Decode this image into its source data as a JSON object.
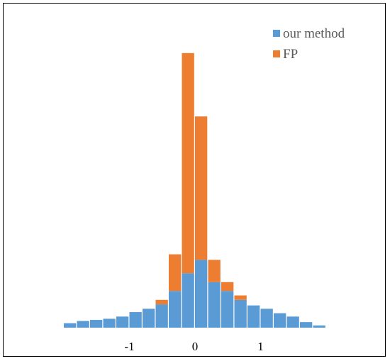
{
  "chart_data": {
    "type": "bar",
    "stacked": true,
    "categories": [
      "-1.9",
      "-1.7",
      "-1.5",
      "-1.3",
      "-1.1",
      "-0.9",
      "-0.7",
      "-0.5",
      "-0.3",
      "-0.1",
      "0.1",
      "0.3",
      "0.5",
      "0.7",
      "0.9",
      "1.1",
      "1.3",
      "1.5",
      "1.7",
      "1.9"
    ],
    "series": [
      {
        "name": "our method",
        "color": "#5B9BD5",
        "values": [
          2.0,
          3.0,
          3.5,
          4.0,
          5.0,
          7.0,
          8.5,
          10.5,
          16.5,
          24.5,
          30.5,
          20.5,
          16.5,
          12.5,
          10.0,
          8.5,
          6.5,
          5.0,
          2.5,
          1.0
        ]
      },
      {
        "name": "FP",
        "color": "#ED7D31",
        "values": [
          0,
          0,
          0,
          0,
          0,
          0,
          0,
          2.0,
          16.5,
          99.0,
          64.5,
          10.0,
          4.0,
          2.0,
          0,
          0,
          0,
          0,
          0,
          0
        ]
      }
    ],
    "x_ticks": [
      {
        "value": -1,
        "label": "-1"
      },
      {
        "value": 0,
        "label": "0"
      },
      {
        "value": 1,
        "label": "1"
      }
    ],
    "xlim": [
      -2,
      2
    ],
    "ylim": [
      0,
      126
    ],
    "title": "",
    "xlabel": "",
    "ylabel": "",
    "grid": false,
    "legend": "top-right"
  }
}
